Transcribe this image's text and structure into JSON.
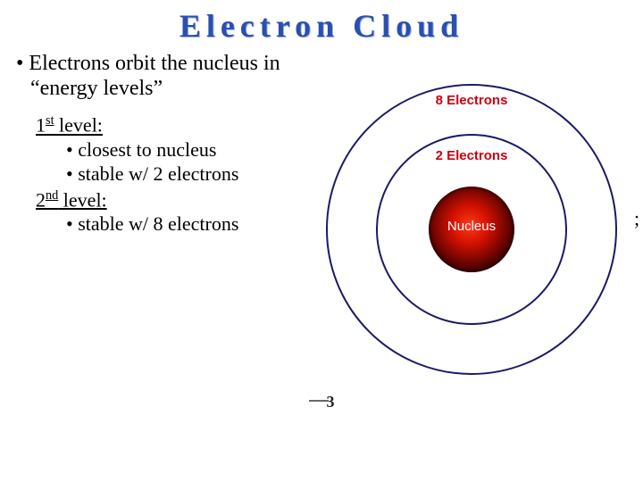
{
  "title": "Electron Cloud",
  "bullet": "Electrons orbit the nucleus in “energy levels”",
  "level1": {
    "ord": "1",
    "sup": "st",
    "rest": " level:"
  },
  "level1_items": [
    "closest to nucleus",
    "stable w/ 2 electrons"
  ],
  "level2": {
    "ord": "2",
    "sup": "nd",
    "rest": " level:"
  },
  "level2_items": [
    "stable w/ 8 electrons"
  ],
  "diagram": {
    "label_outer": "8 Electrons",
    "label_inner": "2 Electrons",
    "nucleus": "Nucleus",
    "ring_color": "#1a1a66",
    "label_color": "#cc0010",
    "nucleus_gradient": [
      "#ff3a1a",
      "#d01000",
      "#4a0000",
      "#000000"
    ]
  },
  "page_number": "3",
  "stray": ";",
  "colors": {
    "title": "#2a4fb0",
    "background": "#ffffff"
  }
}
